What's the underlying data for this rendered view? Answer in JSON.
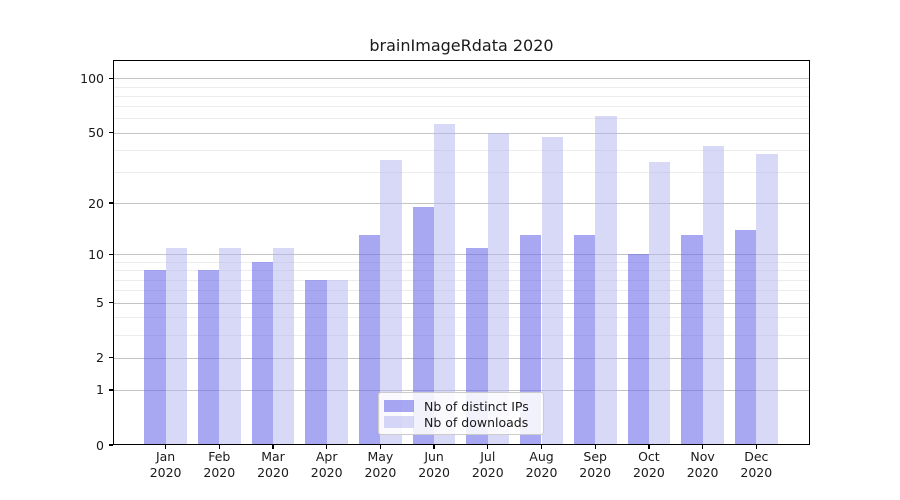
{
  "chart_data": {
    "type": "bar",
    "title": "brainImageRdata 2020",
    "categories": [
      "Jan",
      "Feb",
      "Mar",
      "Apr",
      "May",
      "Jun",
      "Jul",
      "Aug",
      "Sep",
      "Oct",
      "Nov",
      "Dec"
    ],
    "x_axis": {
      "year_sublabel": "2020"
    },
    "series": [
      {
        "name": "Nb of distinct IPs",
        "values": [
          8,
          8,
          9,
          7,
          13,
          19,
          11,
          13,
          13,
          10,
          13,
          14
        ],
        "color": "#a7a7f2",
        "fill": "rgba(108,108,233,0.60)"
      },
      {
        "name": "Nb of downloads",
        "values": [
          11,
          11,
          11,
          7,
          35,
          56,
          50,
          47,
          62,
          34,
          42,
          38
        ],
        "color": "#d8d8f7",
        "fill": "rgba(177,177,239,0.50)"
      }
    ],
    "y_axis": {
      "scale": "log1p",
      "min": 0,
      "max": 126,
      "labeled_ticks": [
        0,
        1,
        2,
        5,
        10,
        20,
        50,
        100
      ],
      "minor_ticks": [
        3,
        4,
        6,
        7,
        8,
        9,
        30,
        40,
        60,
        70,
        80,
        90
      ]
    },
    "grid": true,
    "legend_position": "lower center"
  }
}
